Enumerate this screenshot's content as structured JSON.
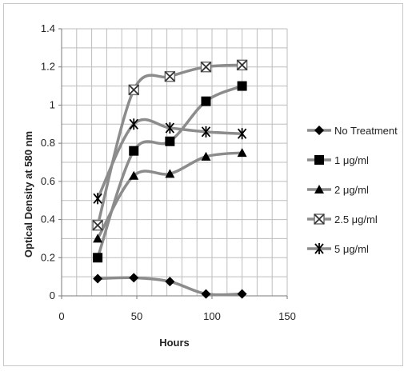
{
  "chart_data": {
    "type": "line",
    "title": "",
    "xlabel": "Hours",
    "ylabel": "Optical Density at 580 nm",
    "xlim": [
      0,
      150
    ],
    "ylim": [
      0,
      1.4
    ],
    "x_ticks": [
      "0",
      "50",
      "100",
      "150"
    ],
    "y_ticks": [
      "0",
      "0.2",
      "0.4",
      "0.6",
      "0.8",
      "1",
      "1.2",
      "1.4"
    ],
    "grid": true,
    "legend_position": "right",
    "x": [
      24,
      48,
      72,
      96,
      120
    ],
    "series": [
      {
        "name": "No Treatment",
        "marker": "diamond",
        "color": "#000000",
        "values": [
          0.09,
          0.095,
          0.075,
          0.01,
          0.01
        ]
      },
      {
        "name": "1 μg/ml",
        "marker": "square",
        "color": "#000000",
        "values": [
          0.2,
          0.76,
          0.81,
          1.02,
          1.1
        ]
      },
      {
        "name": "2 μg/ml",
        "marker": "triangle",
        "color": "#000000",
        "values": [
          0.3,
          0.63,
          0.64,
          0.73,
          0.75
        ]
      },
      {
        "name": "2.5 μg/ml",
        "marker": "boxx",
        "color": "#707070",
        "values": [
          0.37,
          1.08,
          1.15,
          1.2,
          1.21
        ]
      },
      {
        "name": "5 μg/ml",
        "marker": "asterisk",
        "color": "#000000",
        "values": [
          0.51,
          0.9,
          0.88,
          0.86,
          0.85
        ]
      }
    ],
    "line_color": "#8c8c8c"
  }
}
